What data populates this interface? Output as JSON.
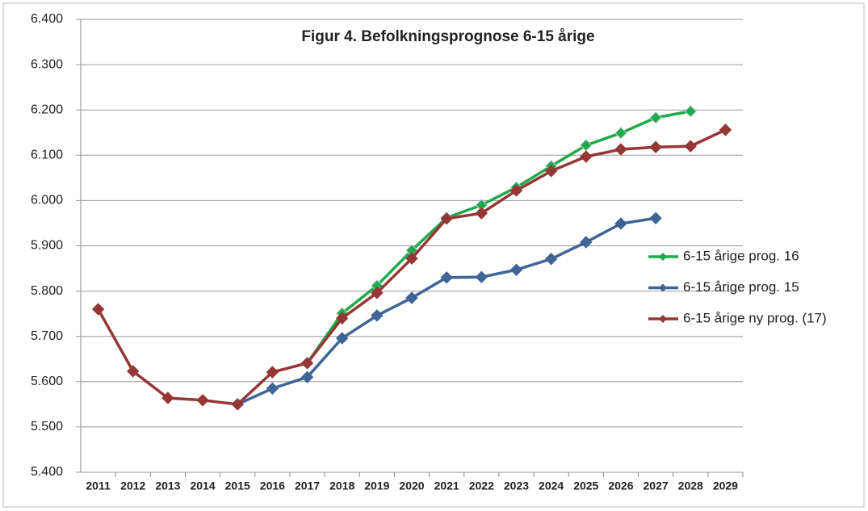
{
  "chart_data": {
    "type": "line",
    "title": "Figur 4. Befolkningsprognose 6-15 årige",
    "categories": [
      "2011",
      "2012",
      "2013",
      "2014",
      "2015",
      "2016",
      "2017",
      "2018",
      "2019",
      "2020",
      "2021",
      "2022",
      "2023",
      "2024",
      "2025",
      "2026",
      "2027",
      "2028",
      "2029"
    ],
    "series": [
      {
        "name": "6-15 årige prog. 16",
        "color": "#1faa4a",
        "values": [
          null,
          null,
          null,
          null,
          null,
          null,
          5641,
          5751,
          5812,
          5890,
          5962,
          5990,
          6029,
          6076,
          6122,
          6149,
          6183,
          6197,
          null
        ]
      },
      {
        "name": "6-15 årige prog. 15",
        "color": "#3f6496",
        "values": [
          null,
          null,
          null,
          null,
          5550,
          5585,
          5610,
          5696,
          5746,
          5785,
          5830,
          5831,
          5847,
          5871,
          5908,
          5949,
          5961,
          null,
          null
        ]
      },
      {
        "name": "6-15 årige ny prog. (17)",
        "color": "#953735",
        "values": [
          5760,
          5623,
          5564,
          5559,
          5550,
          5621,
          5641,
          5740,
          5796,
          5872,
          5960,
          5972,
          6022,
          6065,
          6097,
          6113,
          6118,
          6120,
          6156
        ]
      }
    ],
    "ylim": [
      5400,
      6400
    ],
    "yticks": [
      {
        "value": 5400,
        "label": "5.400"
      },
      {
        "value": 5500,
        "label": "5.500"
      },
      {
        "value": 5600,
        "label": "5.600"
      },
      {
        "value": 5700,
        "label": "5.700"
      },
      {
        "value": 5800,
        "label": "5.800"
      },
      {
        "value": 5900,
        "label": "5.900"
      },
      {
        "value": 6000,
        "label": "6.000"
      },
      {
        "value": 6100,
        "label": "6.100"
      },
      {
        "value": 6200,
        "label": "6.200"
      },
      {
        "value": 6300,
        "label": "6.300"
      },
      {
        "value": 6400,
        "label": "6.400"
      }
    ],
    "grid": true,
    "legend": "right"
  }
}
